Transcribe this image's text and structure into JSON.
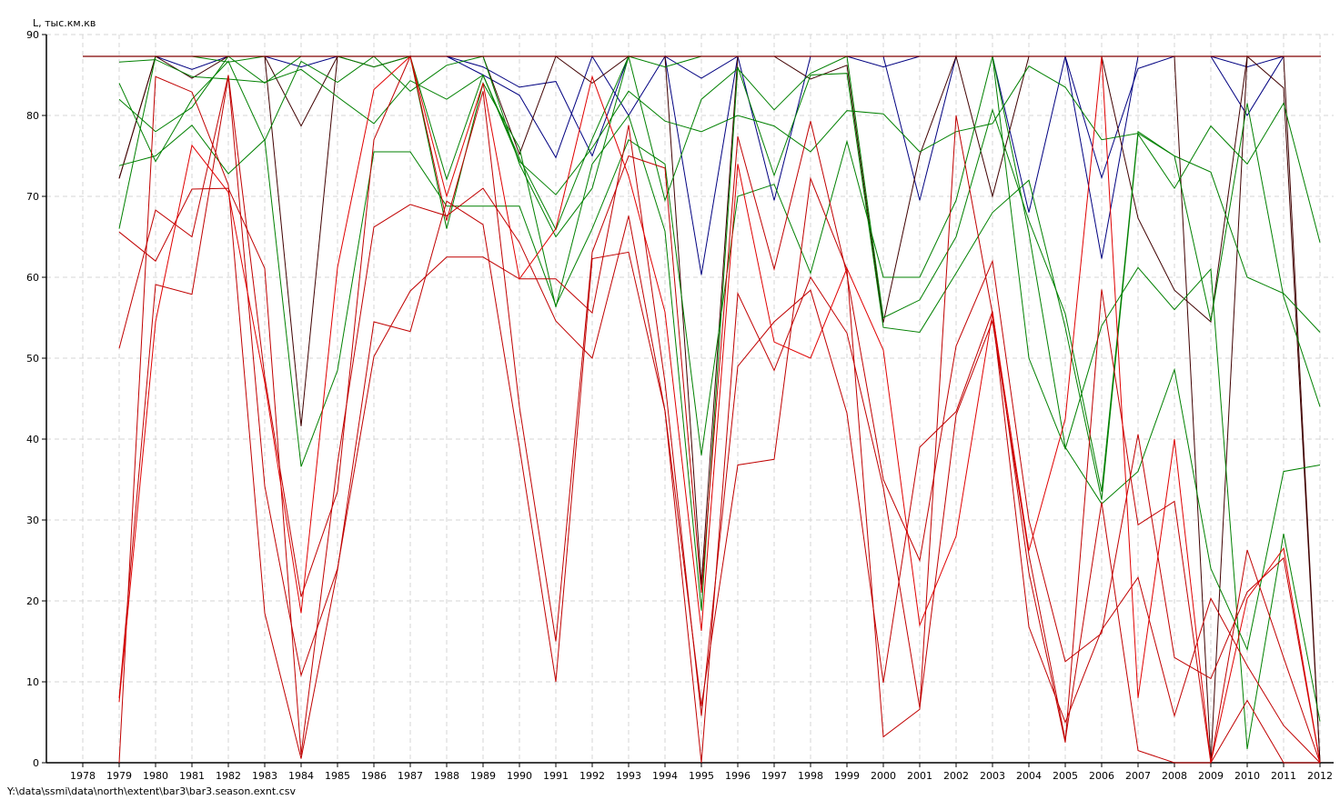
{
  "footer_path": "Y:\\data\\ssmi\\data\\north\\extent\\bar3\\bar3.season.exnt.csv",
  "chart_data": {
    "type": "line",
    "title": "",
    "ylabel": "L, тыс.км.кв",
    "xlabel": "",
    "xlim": [
      1978,
      2012
    ],
    "ylim": [
      0,
      90
    ],
    "xticks": [
      1978,
      1979,
      1980,
      1981,
      1982,
      1983,
      1984,
      1985,
      1986,
      1987,
      1988,
      1989,
      1990,
      1991,
      1992,
      1993,
      1994,
      1995,
      1996,
      1997,
      1998,
      1999,
      2000,
      2001,
      2002,
      2003,
      2004,
      2005,
      2006,
      2007,
      2008,
      2009,
      2010,
      2011,
      2012
    ],
    "yticks": [
      0,
      10,
      20,
      30,
      40,
      50,
      60,
      70,
      80,
      90
    ],
    "grid": true,
    "legend": "none",
    "reference_line": {
      "y": 87.3,
      "color": "#800000"
    },
    "x": [
      1979,
      1980,
      1981,
      1982,
      1983,
      1984,
      1985,
      1986,
      1987,
      1988,
      1989,
      1990,
      1991,
      1992,
      1993,
      1994,
      1995,
      1996,
      1997,
      1998,
      1999,
      2000,
      2001,
      2002,
      2003,
      2004,
      2005,
      2006,
      2007,
      2008,
      2009,
      2010,
      2011,
      2012
    ],
    "series": [
      {
        "color": "#000080",
        "values": [
          87.3,
          87.3,
          87.3,
          87.3,
          87.3,
          87.3,
          87.3,
          87.3,
          87.3,
          87.3,
          85,
          82.5,
          74.8,
          87.3,
          80,
          87.3,
          60.3,
          87.3,
          69.5,
          87.3,
          87.3,
          87.3,
          69.5,
          87.3,
          87.3,
          68,
          87.3,
          62.3,
          87.3,
          87.3,
          87.3,
          80,
          87.3,
          87.3
        ]
      },
      {
        "color": "#000080",
        "values": [
          87.3,
          87.3,
          85.7,
          87.3,
          87.3,
          86,
          87.3,
          87.3,
          87.3,
          87.3,
          86,
          83.5,
          84.2,
          75,
          87.3,
          87.3,
          84.6,
          87.3,
          87.3,
          87.3,
          87.3,
          86,
          87.3,
          87.3,
          87.3,
          87.3,
          87.3,
          72.3,
          85.8,
          87.3,
          87.3,
          86,
          87.3,
          87.3
        ]
      },
      {
        "color": "#400000",
        "values": [
          72.2,
          87.3,
          84.6,
          87.3,
          87.3,
          78.7,
          87.3,
          86,
          87.3,
          87.3,
          87.3,
          75.2,
          87.3,
          84,
          87.3,
          87.3,
          22,
          87.3,
          87.3,
          84.5,
          86.2,
          54.4,
          75.1,
          87.3,
          70,
          87.3,
          87.3,
          87.3,
          67.3,
          58.4,
          54.5,
          87.3,
          83.4,
          0
        ]
      },
      {
        "color": "#400000",
        "values": [
          72.2,
          87.3,
          87.3,
          87.3,
          87.3,
          41.6,
          87.3,
          87.3,
          87.3,
          87.3,
          87.3,
          87.3,
          87.3,
          87.3,
          87.3,
          87.3,
          87.3,
          87.3,
          87.3,
          87.3,
          87.3,
          87.3,
          87.3,
          87.3,
          87.3,
          87.3,
          87.3,
          87.3,
          87.3,
          87.3,
          0,
          87.3,
          87.3,
          0
        ]
      },
      {
        "color": "#008000",
        "values": [
          86.6,
          86.9,
          84.8,
          84.5,
          84.1,
          85.7,
          82.3,
          79,
          84.3,
          82,
          85,
          74.3,
          70.2,
          76,
          83,
          79.3,
          78,
          80,
          78.7,
          75.5,
          80.6,
          80.2,
          75.5,
          78,
          79,
          86.1,
          83.5,
          77,
          77.8,
          75,
          73,
          60,
          58,
          53.2
        ]
      },
      {
        "color": "#008000",
        "values": [
          84,
          74.3,
          82,
          86.7,
          76.9,
          86.7,
          84.1,
          87.3,
          87.3,
          72.1,
          85,
          74.7,
          65.9,
          77.1,
          87.3,
          69.5,
          82,
          85.8,
          80.7,
          85.2,
          87.3,
          55,
          57.2,
          65,
          80.7,
          67,
          55.5,
          33.5,
          78,
          75,
          54.6,
          81.5,
          57.6,
          44
        ]
      },
      {
        "color": "#008000",
        "values": [
          82,
          78,
          81,
          87.3,
          84,
          87.3,
          87.3,
          86,
          87.3,
          66,
          84,
          76,
          56.3,
          74,
          80,
          65.7,
          18.8,
          86,
          72.6,
          85,
          85.2,
          53.8,
          53.2,
          60.5,
          68,
          72,
          53.8,
          32.5,
          77.7,
          71,
          78.7,
          74,
          81.5,
          64.3
        ]
      },
      {
        "color": "#008000",
        "values": [
          73.8,
          75,
          78.8,
          72.8,
          77,
          36.6,
          48.5,
          75.5,
          75.5,
          68.8,
          68.8,
          68.8,
          56.5,
          66,
          77,
          74,
          38,
          70,
          71.5,
          60.5,
          76.8,
          60,
          60,
          69.5,
          87.3,
          65.5,
          39,
          32,
          36,
          48.6,
          24,
          14,
          36,
          36.8
        ]
      },
      {
        "color": "#008000",
        "values": [
          66,
          87.3,
          87.3,
          86.6,
          87.3,
          87.3,
          87.3,
          87.3,
          83,
          86.2,
          87.3,
          74,
          65,
          71,
          87.3,
          86,
          87.3,
          87.3,
          87.3,
          87.3,
          87.3,
          87.3,
          87.3,
          87.3,
          87.3,
          50,
          38.8,
          54,
          61.2,
          56,
          61,
          1.7,
          28.3,
          5.1
        ]
      },
      {
        "color": "#c00000",
        "values": [
          65.6,
          62,
          70.9,
          71,
          61.1,
          1,
          37,
          66.2,
          69,
          67.6,
          71,
          64.3,
          54.6,
          50,
          67.6,
          43.5,
          7,
          36.8,
          37.5,
          72.2,
          61,
          3.2,
          6.6,
          80,
          55.5,
          16.8,
          5,
          16.4,
          22.9,
          5.8,
          20.3,
          12,
          4.6,
          0
        ]
      },
      {
        "color": "#c00000",
        "values": [
          51.2,
          68.3,
          65,
          85,
          47.7,
          20.5,
          33.5,
          77,
          87.3,
          67,
          83,
          44,
          15,
          63.1,
          75,
          73.5,
          21,
          77.4,
          61,
          79.3,
          60.3,
          35,
          25,
          51.5,
          62,
          30,
          12.5,
          16,
          40.6,
          13,
          10.4,
          21.1,
          25.3,
          0
        ]
      },
      {
        "color": "#c00000",
        "values": [
          8,
          59.1,
          57.9,
          84.8,
          34.2,
          10.8,
          24,
          50.2,
          58.3,
          62.5,
          62.5,
          59.8,
          59.8,
          55.6,
          78.8,
          47,
          5.8,
          49,
          54.5,
          58.4,
          43.2,
          9.9,
          39,
          43.4,
          55.8,
          23.5,
          2.5,
          58.5,
          29.4,
          32.3,
          0,
          26.3,
          13,
          0
        ]
      },
      {
        "color": "#c00000",
        "values": [
          0,
          84.8,
          82.9,
          71.4,
          18.5,
          0.5,
          23.8,
          54.5,
          53.3,
          69.4,
          66.5,
          39,
          10,
          62.3,
          63.1,
          43.5,
          0,
          58,
          48.5,
          60,
          53.1,
          34,
          6.8,
          43,
          54.6,
          25.7,
          2.8,
          32.2,
          1.5,
          0,
          0,
          7.7,
          0,
          0
        ]
      },
      {
        "color": "#e00000",
        "values": [
          7.5,
          54.5,
          76.3,
          70.5,
          47,
          18.5,
          61.2,
          83.2,
          87.3,
          70,
          84,
          59.8,
          66,
          84.8,
          72.5,
          55.7,
          16.3,
          74,
          52,
          50,
          61.1,
          51,
          17,
          28,
          55.6,
          26.2,
          42.5,
          87.3,
          8,
          40,
          0,
          20.3,
          26.5,
          0
        ]
      }
    ]
  }
}
